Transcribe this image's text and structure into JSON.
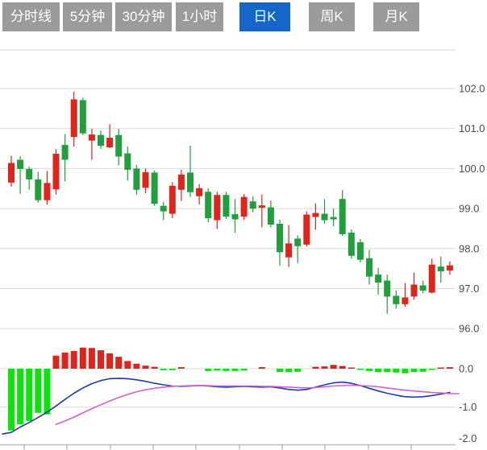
{
  "tabs": {
    "items": [
      {
        "label": "分时线",
        "active": false
      },
      {
        "label": "5分钟",
        "active": false
      },
      {
        "label": "30分钟",
        "active": false
      },
      {
        "label": "1小时",
        "active": false
      },
      {
        "label": "日K",
        "active": true
      },
      {
        "label": "周K",
        "active": false
      },
      {
        "label": "月K",
        "active": false
      }
    ]
  },
  "colors": {
    "tab_bg": "#9b9b9b",
    "tab_active_bg": "#1467c8",
    "tab_text": "#ffffff",
    "up": "#e2231c",
    "down": "#1fa03c",
    "macd_pos": "#e2231c",
    "macd_neg": "#0ce20c",
    "dif_line": "#1f3aad",
    "dea_line": "#d45fd0",
    "grid": "#d9d9d9",
    "axis_line": "#bdbdbd",
    "tick": "#9b9b9b",
    "label_text": "#4a4a4a",
    "separator": "#cccccc"
  },
  "chart_data": {
    "type": "candlestick+macd",
    "price_axis_tick_labels": [
      "102.0",
      "101.0",
      "100.0",
      "99.0",
      "98.0",
      "97.0",
      "96.0"
    ],
    "price_axis_tick_values": [
      102,
      101,
      100,
      99,
      98,
      97,
      96
    ],
    "macd_axis_tick_labels": [
      "0.0",
      "-1.0",
      "-2.0"
    ],
    "macd_axis_tick_values": [
      0,
      -1,
      -2
    ],
    "price_ylim": [
      95.9,
      102.4
    ],
    "macd_ylim": [
      -2.1,
      0.6
    ],
    "grid": "horizontal-only",
    "legend": "none",
    "candles_ohlc_note": "each candle = [open, close, high, low]; close>=open renders red (up), close<open renders green (down)",
    "candles": [
      [
        99.65,
        100.14,
        100.32,
        99.55
      ],
      [
        100.22,
        99.99,
        100.31,
        99.37
      ],
      [
        99.99,
        99.73,
        100.05,
        99.48
      ],
      [
        99.73,
        99.21,
        99.92,
        99.15
      ],
      [
        99.21,
        99.64,
        99.94,
        99.1
      ],
      [
        99.48,
        100.37,
        100.49,
        99.35
      ],
      [
        100.59,
        100.22,
        100.86,
        99.68
      ],
      [
        100.79,
        101.73,
        101.92,
        100.55
      ],
      [
        101.71,
        100.88,
        101.77,
        100.84
      ],
      [
        100.7,
        100.85,
        100.99,
        100.22
      ],
      [
        100.84,
        100.57,
        100.95,
        100.49
      ],
      [
        100.53,
        100.77,
        101.11,
        100.51
      ],
      [
        100.84,
        100.3,
        100.99,
        100.08
      ],
      [
        100.38,
        99.97,
        100.55,
        99.7
      ],
      [
        100.0,
        99.47,
        100.09,
        99.35
      ],
      [
        99.52,
        99.91,
        100.0,
        99.38
      ],
      [
        99.9,
        99.12,
        99.95,
        99.07
      ],
      [
        99.07,
        98.93,
        99.17,
        98.71
      ],
      [
        98.87,
        99.57,
        99.66,
        98.76
      ],
      [
        99.47,
        99.85,
        99.97,
        99.19
      ],
      [
        99.9,
        99.41,
        100.57,
        99.29
      ],
      [
        99.31,
        99.51,
        99.61,
        99.1
      ],
      [
        99.42,
        98.76,
        99.51,
        98.66
      ],
      [
        98.71,
        99.34,
        99.42,
        98.49
      ],
      [
        99.34,
        98.8,
        99.42,
        98.74
      ],
      [
        98.86,
        98.73,
        99.24,
        98.39
      ],
      [
        98.8,
        99.29,
        99.36,
        98.72
      ],
      [
        99.18,
        99.0,
        99.31,
        98.9
      ],
      [
        99.02,
        99.08,
        99.35,
        98.53
      ],
      [
        99.03,
        98.6,
        99.2,
        98.53
      ],
      [
        98.62,
        97.91,
        98.72,
        97.57
      ],
      [
        97.78,
        98.13,
        98.59,
        97.54
      ],
      [
        98.25,
        98.06,
        98.33,
        97.64
      ],
      [
        98.1,
        98.85,
        98.93,
        98.05
      ],
      [
        98.79,
        98.89,
        99.13,
        98.47
      ],
      [
        98.87,
        98.71,
        99.24,
        98.62
      ],
      [
        98.79,
        98.73,
        99.0,
        98.56
      ],
      [
        99.24,
        98.36,
        99.46,
        98.32
      ],
      [
        98.4,
        97.82,
        98.48,
        97.75
      ],
      [
        98.16,
        97.72,
        98.24,
        97.65
      ],
      [
        97.76,
        97.3,
        97.97,
        97.1
      ],
      [
        97.35,
        97.15,
        97.52,
        96.85
      ],
      [
        97.2,
        96.8,
        97.35,
        96.37
      ],
      [
        96.82,
        96.61,
        96.95,
        96.5
      ],
      [
        96.61,
        96.78,
        97.14,
        96.55
      ],
      [
        96.8,
        97.1,
        97.4,
        96.72
      ],
      [
        97.08,
        96.95,
        97.2,
        96.88
      ],
      [
        96.9,
        97.6,
        97.75,
        96.88
      ],
      [
        97.55,
        97.43,
        97.8,
        97.15
      ],
      [
        97.45,
        97.58,
        97.68,
        97.35
      ]
    ],
    "macd": {
      "histogram": [
        -1.61,
        -1.45,
        -1.36,
        -1.15,
        -1.19,
        0.34,
        0.42,
        0.46,
        0.55,
        0.54,
        0.48,
        0.4,
        0.31,
        0.2,
        0.13,
        0.08,
        0.05,
        -0.04,
        -0.04,
        0.04,
        0.0,
        0.0,
        -0.06,
        -0.05,
        -0.06,
        -0.06,
        -0.05,
        0.0,
        0.04,
        0.0,
        -0.09,
        -0.09,
        -0.08,
        0.0,
        0.05,
        0.06,
        0.1,
        0.07,
        0.02,
        -0.02,
        -0.06,
        -0.09,
        -0.09,
        -0.1,
        -0.12,
        -0.09,
        -0.08,
        -0.03,
        0.03,
        0.04
      ],
      "dif": [
        -1.66,
        -1.52,
        -1.4,
        -1.27,
        -1.13,
        -0.97,
        -0.8,
        -0.64,
        -0.5,
        -0.39,
        -0.31,
        -0.26,
        -0.25,
        -0.26,
        -0.29,
        -0.33,
        -0.38,
        -0.42,
        -0.45,
        -0.46,
        -0.45,
        -0.44,
        -0.45,
        -0.47,
        -0.48,
        -0.47,
        -0.46,
        -0.47,
        -0.48,
        -0.47,
        -0.5,
        -0.54,
        -0.56,
        -0.54,
        -0.48,
        -0.42,
        -0.37,
        -0.35,
        -0.38,
        -0.44,
        -0.51,
        -0.58,
        -0.64,
        -0.69,
        -0.73,
        -0.74,
        -0.73,
        -0.7,
        -0.66,
        -0.62
      ],
      "dea_start_index": 5,
      "dea": [
        -1.45,
        -1.36,
        -1.26,
        -1.15,
        -1.04,
        -0.94,
        -0.84,
        -0.75,
        -0.67,
        -0.6,
        -0.55,
        -0.51,
        -0.48,
        -0.46,
        -0.45,
        -0.44,
        -0.44,
        -0.44,
        -0.45,
        -0.45,
        -0.45,
        -0.45,
        -0.45,
        -0.46,
        -0.46,
        -0.47,
        -0.48,
        -0.49,
        -0.5,
        -0.49,
        -0.47,
        -0.45,
        -0.44,
        -0.43,
        -0.44,
        -0.45,
        -0.47,
        -0.5,
        -0.53,
        -0.56,
        -0.58,
        -0.6,
        -0.62,
        -0.63,
        -0.65,
        -0.65
      ]
    }
  }
}
